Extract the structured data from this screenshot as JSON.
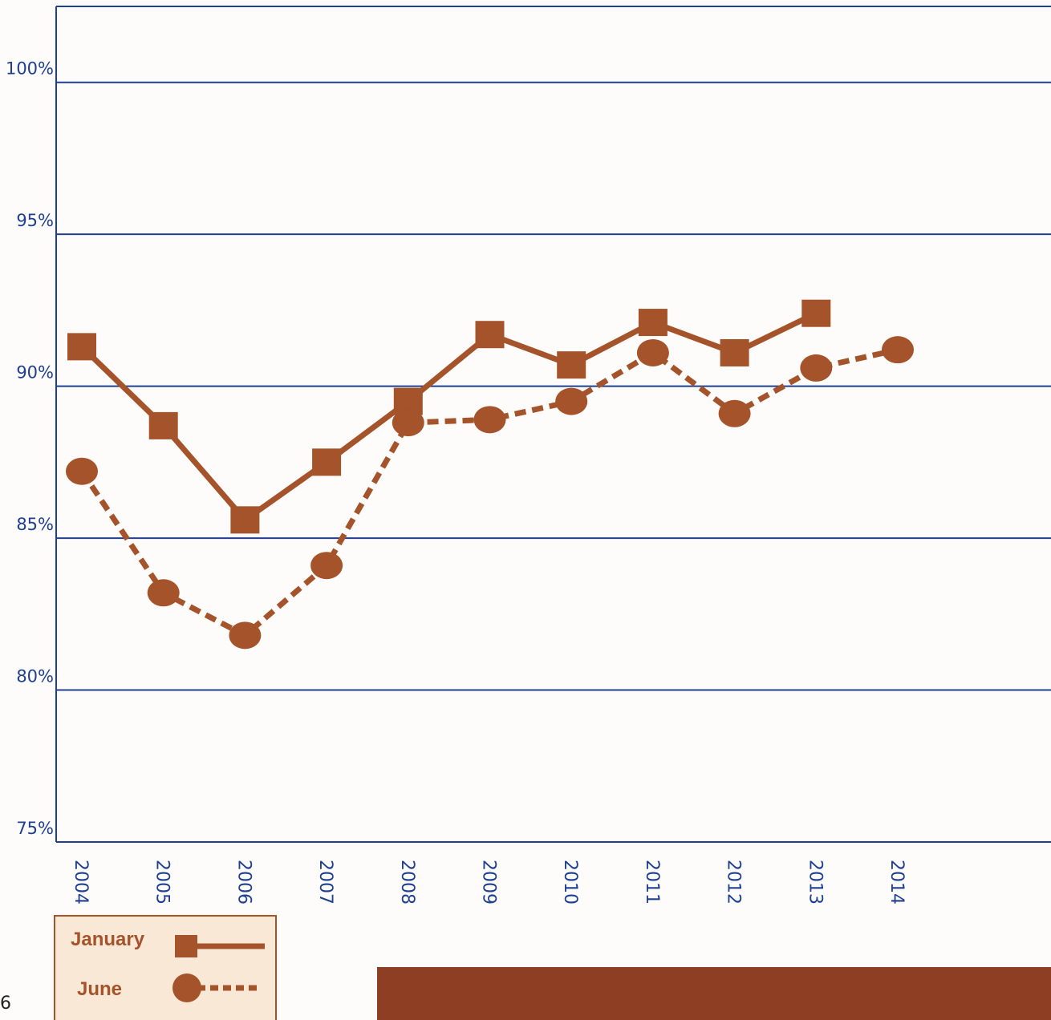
{
  "page_number": "6",
  "colors": {
    "axis": "#1f3f8f",
    "series": "#a5532a",
    "legend_bg": "#fae8d6",
    "band": "#8e3e22"
  },
  "chart_data": {
    "type": "line",
    "x": [
      "2004",
      "2005",
      "2006",
      "2007",
      "2008",
      "2009",
      "2010",
      "2011",
      "2012",
      "2013",
      "2014"
    ],
    "yticks": [
      "75%",
      "80%",
      "85%",
      "90%",
      "95%",
      "100%"
    ],
    "ylim": [
      75,
      102.5
    ],
    "grid": true,
    "legend_position": "bottom-left",
    "series": [
      {
        "name": "January",
        "marker": "square",
        "line": "solid",
        "values": [
          91.3,
          88.7,
          85.6,
          87.5,
          89.5,
          91.7,
          90.7,
          92.1,
          91.1,
          92.4,
          null
        ]
      },
      {
        "name": "June",
        "marker": "circle",
        "line": "dashed",
        "values": [
          87.2,
          83.2,
          81.8,
          84.1,
          88.8,
          88.9,
          89.5,
          91.1,
          89.1,
          90.6,
          91.2
        ]
      }
    ]
  }
}
